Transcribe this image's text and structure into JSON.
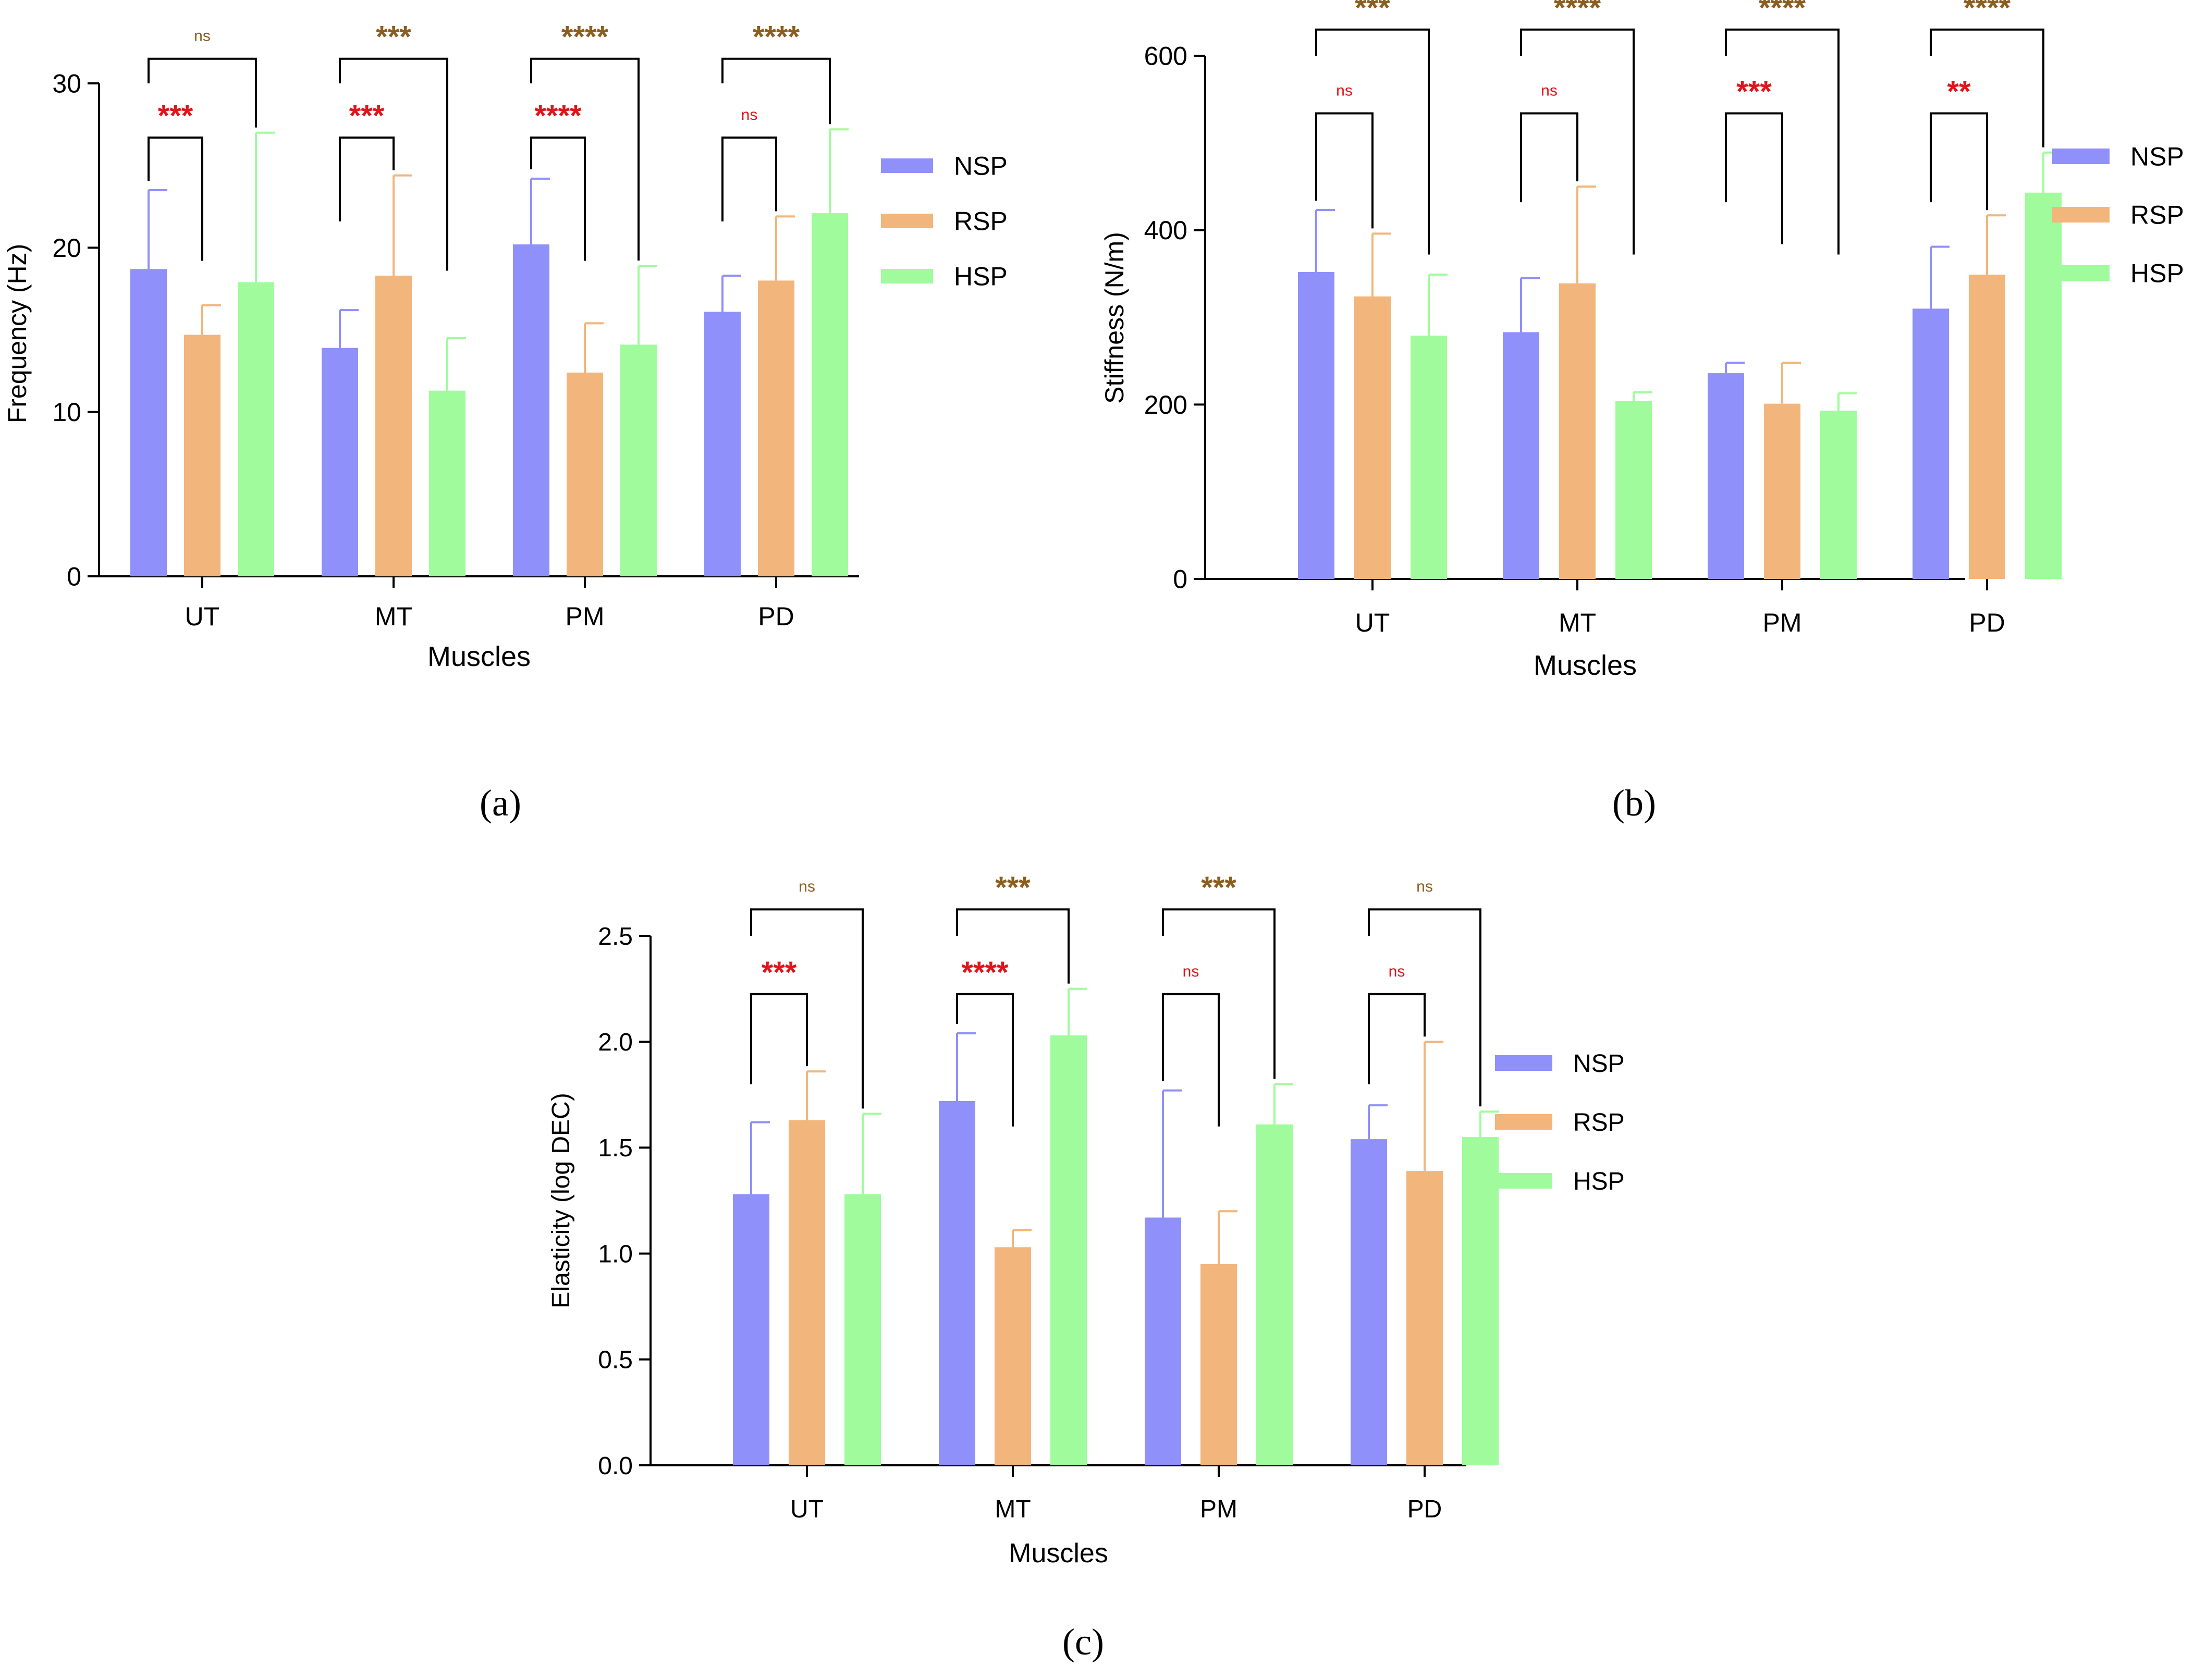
{
  "legend": {
    "items": [
      {
        "name": "NSP",
        "color": "#8f90fa"
      },
      {
        "name": "RSP",
        "color": "#f2b57b"
      },
      {
        "name": "HSP",
        "color": "#a0fb9c"
      }
    ]
  },
  "colors": {
    "sig_primary": "#e0141b",
    "sig_secondary": "#8c5e1f",
    "axis": "#000000"
  },
  "chart_data": [
    {
      "type": "bar",
      "panel_label": "(a)",
      "xlabel": "Muscles",
      "ylabel": "Frequency (Hz)",
      "ylim": [
        0,
        30
      ],
      "yticks": [
        "0",
        "10",
        "20",
        "30"
      ],
      "categories": [
        "UT",
        "MT",
        "PM",
        "PD"
      ],
      "series": [
        {
          "name": "NSP",
          "values": [
            18.7,
            13.9,
            20.2,
            16.1
          ],
          "errors": [
            4.8,
            2.3,
            4.0,
            2.2
          ]
        },
        {
          "name": "RSP",
          "values": [
            14.7,
            18.3,
            12.4,
            18.0
          ],
          "errors": [
            1.8,
            6.1,
            3.0,
            3.9
          ]
        },
        {
          "name": "HSP",
          "values": [
            17.9,
            11.3,
            14.1,
            22.1
          ],
          "errors": [
            9.1,
            3.2,
            4.8,
            5.1
          ]
        }
      ],
      "significance": [
        {
          "category": "UT",
          "pair": "NSP-RSP",
          "label": "***"
        },
        {
          "category": "UT",
          "pair": "NSP-HSP",
          "label": "ns"
        },
        {
          "category": "MT",
          "pair": "NSP-RSP",
          "label": "***"
        },
        {
          "category": "MT",
          "pair": "NSP-HSP",
          "label": "***"
        },
        {
          "category": "PM",
          "pair": "NSP-RSP",
          "label": "****"
        },
        {
          "category": "PM",
          "pair": "NSP-HSP",
          "label": "****"
        },
        {
          "category": "PD",
          "pair": "NSP-RSP",
          "label": "ns"
        },
        {
          "category": "PD",
          "pair": "NSP-HSP",
          "label": "****"
        }
      ]
    },
    {
      "type": "bar",
      "panel_label": "(b)",
      "xlabel": "Muscles",
      "ylabel": "Stiffness (N/m)",
      "ylim": [
        0,
        600
      ],
      "yticks": [
        "0",
        "200",
        "400",
        "600"
      ],
      "categories": [
        "UT",
        "MT",
        "PM",
        "PD"
      ],
      "series": [
        {
          "name": "NSP",
          "values": [
            352,
            283,
            236,
            310
          ],
          "errors": [
            71,
            62,
            12,
            71
          ]
        },
        {
          "name": "RSP",
          "values": [
            324,
            339,
            201,
            349
          ],
          "errors": [
            72,
            111,
            47,
            68
          ]
        },
        {
          "name": "HSP",
          "values": [
            279,
            204,
            193,
            443
          ],
          "errors": [
            70,
            10,
            20,
            46
          ]
        }
      ],
      "significance": [
        {
          "category": "UT",
          "pair": "NSP-RSP",
          "label": "ns"
        },
        {
          "category": "UT",
          "pair": "NSP-HSP",
          "label": "***"
        },
        {
          "category": "MT",
          "pair": "NSP-RSP",
          "label": "ns"
        },
        {
          "category": "MT",
          "pair": "NSP-HSP",
          "label": "****"
        },
        {
          "category": "PM",
          "pair": "NSP-RSP",
          "label": "***"
        },
        {
          "category": "PM",
          "pair": "NSP-HSP",
          "label": "****"
        },
        {
          "category": "PD",
          "pair": "NSP-RSP",
          "label": "**"
        },
        {
          "category": "PD",
          "pair": "NSP-HSP",
          "label": "****"
        }
      ]
    },
    {
      "type": "bar",
      "panel_label": "(c)",
      "xlabel": "Muscles",
      "ylabel": "Elasticity (log DEC)",
      "ylim": [
        0,
        2.5
      ],
      "yticks": [
        "0.0",
        "0.5",
        "1.0",
        "1.5",
        "2.0",
        "2.5"
      ],
      "categories": [
        "UT",
        "MT",
        "PM",
        "PD"
      ],
      "series": [
        {
          "name": "NSP",
          "values": [
            1.28,
            1.72,
            1.17,
            1.54
          ],
          "errors": [
            0.34,
            0.32,
            0.6,
            0.16
          ]
        },
        {
          "name": "RSP",
          "values": [
            1.63,
            1.03,
            0.95,
            1.39
          ],
          "errors": [
            0.23,
            0.08,
            0.25,
            0.61
          ]
        },
        {
          "name": "HSP",
          "values": [
            1.28,
            2.03,
            1.61,
            1.55
          ],
          "errors": [
            0.38,
            0.22,
            0.19,
            0.12
          ]
        }
      ],
      "significance": [
        {
          "category": "UT",
          "pair": "NSP-RSP",
          "label": "***"
        },
        {
          "category": "UT",
          "pair": "NSP-HSP",
          "label": "ns"
        },
        {
          "category": "MT",
          "pair": "NSP-RSP",
          "label": "****"
        },
        {
          "category": "MT",
          "pair": "NSP-HSP",
          "label": "***"
        },
        {
          "category": "PM",
          "pair": "NSP-RSP",
          "label": "ns"
        },
        {
          "category": "PM",
          "pair": "NSP-HSP",
          "label": "***"
        },
        {
          "category": "PD",
          "pair": "NSP-RSP",
          "label": "ns"
        },
        {
          "category": "PD",
          "pair": "NSP-HSP",
          "label": "ns"
        }
      ]
    }
  ]
}
